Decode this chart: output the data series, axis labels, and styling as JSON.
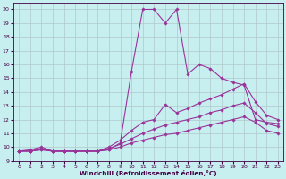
{
  "xlabel": "Windchill (Refroidissement éolien,°C)",
  "xlim": [
    -0.5,
    23.5
  ],
  "ylim": [
    9,
    20.5
  ],
  "xticks": [
    0,
    1,
    2,
    3,
    4,
    5,
    6,
    7,
    8,
    9,
    10,
    11,
    12,
    13,
    14,
    15,
    16,
    17,
    18,
    19,
    20,
    21,
    22,
    23
  ],
  "yticks": [
    9,
    10,
    11,
    12,
    13,
    14,
    15,
    16,
    17,
    18,
    19,
    20
  ],
  "bg_color": "#c8eff0",
  "line_color": "#993399",
  "grid_color": "#b0c8cc",
  "lines": [
    {
      "x": [
        0,
        1,
        2,
        3,
        4,
        5,
        6,
        7,
        8,
        9,
        10,
        11,
        12,
        13,
        14,
        15,
        16,
        17,
        18,
        19,
        20,
        21,
        22,
        23
      ],
      "y": [
        9.7,
        9.8,
        10.0,
        9.7,
        9.7,
        9.7,
        9.7,
        9.7,
        9.8,
        10.3,
        15.5,
        20.0,
        20.0,
        19.0,
        20.0,
        15.3,
        16.0,
        15.7,
        15.0,
        14.7,
        14.5,
        12.0,
        11.8,
        11.7
      ]
    },
    {
      "x": [
        0,
        1,
        2,
        3,
        4,
        5,
        6,
        7,
        8,
        9,
        10,
        11,
        12,
        13,
        14,
        15,
        16,
        17,
        18,
        19,
        20,
        21,
        22,
        23
      ],
      "y": [
        9.7,
        9.7,
        9.9,
        9.7,
        9.7,
        9.7,
        9.7,
        9.7,
        10.0,
        10.5,
        11.2,
        11.8,
        12.0,
        13.1,
        12.5,
        12.8,
        13.2,
        13.5,
        13.8,
        14.2,
        14.6,
        13.3,
        12.3,
        12.0
      ]
    },
    {
      "x": [
        0,
        1,
        2,
        3,
        4,
        5,
        6,
        7,
        8,
        9,
        10,
        11,
        12,
        13,
        14,
        15,
        16,
        17,
        18,
        19,
        20,
        21,
        22,
        23
      ],
      "y": [
        9.7,
        9.7,
        9.8,
        9.7,
        9.7,
        9.7,
        9.7,
        9.7,
        9.9,
        10.2,
        10.6,
        11.0,
        11.3,
        11.6,
        11.8,
        12.0,
        12.2,
        12.5,
        12.7,
        13.0,
        13.2,
        12.5,
        11.7,
        11.5
      ]
    },
    {
      "x": [
        0,
        1,
        2,
        3,
        4,
        5,
        6,
        7,
        8,
        9,
        10,
        11,
        12,
        13,
        14,
        15,
        16,
        17,
        18,
        19,
        20,
        21,
        22,
        23
      ],
      "y": [
        9.7,
        9.7,
        9.8,
        9.7,
        9.7,
        9.7,
        9.7,
        9.7,
        9.8,
        10.0,
        10.3,
        10.5,
        10.7,
        10.9,
        11.0,
        11.2,
        11.4,
        11.6,
        11.8,
        12.0,
        12.2,
        11.8,
        11.2,
        11.0
      ]
    }
  ]
}
